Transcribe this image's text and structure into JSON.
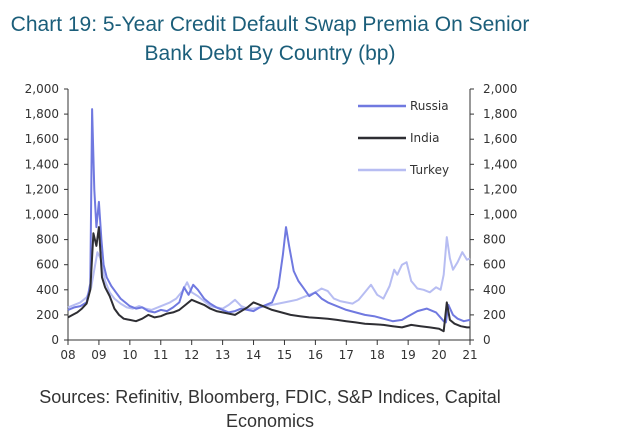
{
  "title": {
    "line1": "Chart 19: 5-Year Credit Default Swap Premia On Senior",
    "line2": "Bank Debt By Country (bp)"
  },
  "source": {
    "line1": "Sources: Refinitiv, Bloomberg, FDIC, S&P Indices, Capital",
    "line2": "Economics"
  },
  "chart_data": {
    "type": "line",
    "ylim": [
      0,
      2000
    ],
    "xlim": [
      2008,
      2021
    ],
    "yticks_left": [
      "0",
      "200",
      "400",
      "600",
      "800",
      "1,000",
      "1,200",
      "1,400",
      "1,600",
      "1,800",
      "2,000"
    ],
    "yticks_right": [
      "0",
      "200",
      "400",
      "600",
      "800",
      "1,000",
      "1,200",
      "1,400",
      "1,600",
      "1,800",
      "2,000"
    ],
    "ytick_values": [
      0,
      200,
      400,
      600,
      800,
      1000,
      1200,
      1400,
      1600,
      1800,
      2000
    ],
    "xticks": [
      "08",
      "09",
      "10",
      "11",
      "12",
      "13",
      "14",
      "15",
      "16",
      "17",
      "18",
      "19",
      "20",
      "21"
    ],
    "xtick_values": [
      2008,
      2009,
      2010,
      2011,
      2012,
      2013,
      2014,
      2015,
      2016,
      2017,
      2018,
      2019,
      2020,
      2021
    ],
    "grid": false,
    "legend_position": "top-right",
    "series": [
      {
        "name": "Turkey",
        "color": "#b7bdf2",
        "x": [
          2008.0,
          2008.2,
          2008.4,
          2008.6,
          2008.75,
          2008.85,
          2008.95,
          2009.05,
          2009.2,
          2009.35,
          2009.5,
          2009.7,
          2009.9,
          2010.1,
          2010.3,
          2010.5,
          2010.7,
          2010.9,
          2011.1,
          2011.3,
          2011.5,
          2011.7,
          2011.85,
          2012.0,
          2012.2,
          2012.4,
          2012.6,
          2012.8,
          2013.0,
          2013.2,
          2013.4,
          2013.6,
          2013.8,
          2014.0,
          2014.2,
          2014.4,
          2014.6,
          2014.8,
          2015.0,
          2015.2,
          2015.4,
          2015.6,
          2015.8,
          2016.0,
          2016.2,
          2016.4,
          2016.6,
          2016.8,
          2017.0,
          2017.2,
          2017.4,
          2017.6,
          2017.8,
          2018.0,
          2018.2,
          2018.4,
          2018.55,
          2018.65,
          2018.8,
          2018.95,
          2019.1,
          2019.3,
          2019.5,
          2019.7,
          2019.9,
          2020.05,
          2020.15,
          2020.25,
          2020.35,
          2020.45,
          2020.6,
          2020.75,
          2020.9,
          2021.0
        ],
        "y": [
          260,
          280,
          300,
          340,
          420,
          560,
          700,
          650,
          470,
          380,
          330,
          290,
          260,
          250,
          270,
          250,
          240,
          260,
          280,
          300,
          330,
          390,
          460,
          380,
          350,
          310,
          270,
          260,
          250,
          280,
          320,
          270,
          250,
          250,
          260,
          270,
          280,
          290,
          300,
          310,
          320,
          340,
          360,
          380,
          410,
          390,
          330,
          310,
          300,
          290,
          320,
          380,
          440,
          360,
          330,
          430,
          560,
          520,
          600,
          620,
          470,
          410,
          400,
          380,
          420,
          400,
          520,
          820,
          650,
          560,
          620,
          700,
          640,
          650
        ]
      },
      {
        "name": "Russia",
        "color": "#7079e0",
        "x": [
          2008.0,
          2008.2,
          2008.4,
          2008.6,
          2008.72,
          2008.78,
          2008.85,
          2008.92,
          2009.0,
          2009.08,
          2009.15,
          2009.25,
          2009.4,
          2009.55,
          2009.7,
          2009.85,
          2010.0,
          2010.2,
          2010.4,
          2010.6,
          2010.8,
          2011.0,
          2011.2,
          2011.4,
          2011.6,
          2011.75,
          2011.9,
          2012.05,
          2012.2,
          2012.4,
          2012.6,
          2012.8,
          2013.0,
          2013.2,
          2013.4,
          2013.6,
          2013.8,
          2014.0,
          2014.2,
          2014.4,
          2014.6,
          2014.8,
          2014.95,
          2015.05,
          2015.15,
          2015.3,
          2015.45,
          2015.6,
          2015.8,
          2016.0,
          2016.2,
          2016.4,
          2016.6,
          2016.8,
          2017.0,
          2017.3,
          2017.6,
          2017.9,
          2018.2,
          2018.5,
          2018.8,
          2019.0,
          2019.3,
          2019.6,
          2019.9,
          2020.15,
          2020.22,
          2020.3,
          2020.45,
          2020.6,
          2020.8,
          2021.0
        ],
        "y": [
          240,
          260,
          270,
          300,
          450,
          1840,
          1200,
          900,
          1100,
          800,
          600,
          500,
          430,
          380,
          330,
          300,
          270,
          250,
          260,
          230,
          220,
          240,
          230,
          260,
          300,
          420,
          360,
          440,
          400,
          330,
          290,
          260,
          240,
          220,
          230,
          250,
          240,
          230,
          260,
          280,
          300,
          420,
          680,
          900,
          750,
          550,
          470,
          420,
          350,
          380,
          330,
          300,
          280,
          260,
          240,
          220,
          200,
          190,
          170,
          150,
          160,
          190,
          230,
          250,
          220,
          150,
          140,
          280,
          200,
          170,
          150,
          160
        ]
      },
      {
        "name": "India",
        "color": "#2e2e33",
        "x": [
          2008.0,
          2008.15,
          2008.3,
          2008.45,
          2008.6,
          2008.72,
          2008.82,
          2008.92,
          2009.0,
          2009.1,
          2009.2,
          2009.35,
          2009.5,
          2009.65,
          2009.8,
          2010.0,
          2010.2,
          2010.4,
          2010.6,
          2010.8,
          2011.0,
          2011.2,
          2011.4,
          2011.6,
          2011.8,
          2012.0,
          2012.2,
          2012.4,
          2012.6,
          2012.8,
          2013.0,
          2013.2,
          2013.4,
          2013.6,
          2013.8,
          2014.0,
          2014.3,
          2014.6,
          2014.9,
          2015.2,
          2015.5,
          2015.8,
          2016.1,
          2016.4,
          2016.7,
          2017.0,
          2017.3,
          2017.6,
          2017.9,
          2018.2,
          2018.5,
          2018.8,
          2019.1,
          2019.4,
          2019.7,
          2020.0,
          2020.15,
          2020.25,
          2020.35,
          2020.5,
          2020.7,
          2020.9,
          2021.0
        ],
        "y": [
          180,
          200,
          220,
          250,
          290,
          400,
          850,
          750,
          900,
          500,
          420,
          350,
          250,
          200,
          170,
          160,
          150,
          170,
          200,
          180,
          190,
          210,
          220,
          240,
          280,
          320,
          300,
          280,
          250,
          230,
          220,
          210,
          200,
          230,
          260,
          300,
          270,
          240,
          220,
          200,
          190,
          180,
          175,
          170,
          160,
          150,
          140,
          130,
          125,
          120,
          110,
          100,
          120,
          110,
          100,
          90,
          70,
          300,
          160,
          130,
          110,
          100,
          100
        ]
      }
    ]
  }
}
